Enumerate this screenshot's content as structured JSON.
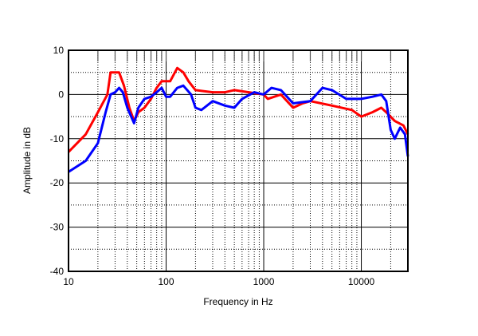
{
  "chart_data": {
    "type": "line",
    "title": "",
    "xlabel": "Frequency in Hz",
    "ylabel": "Amplitude in dB",
    "xscale": "log",
    "xlim": [
      10,
      30000
    ],
    "ylim": [
      -40,
      10
    ],
    "xticks": [
      10,
      100,
      1000,
      10000
    ],
    "xtick_labels": [
      "10",
      "100",
      "1000",
      "10000"
    ],
    "yticks": [
      10,
      0,
      -10,
      -20,
      -30,
      -40
    ],
    "ytick_labels": [
      "10",
      "0",
      "-10",
      "-20",
      "-30",
      "-40"
    ],
    "grid": true,
    "series": [
      {
        "name": "red",
        "color": "#ff0000",
        "x": [
          10,
          15,
          20,
          25,
          27,
          33,
          37,
          42,
          47,
          52,
          60,
          70,
          80,
          90,
          110,
          130,
          150,
          170,
          200,
          300,
          400,
          500,
          700,
          1000,
          1100,
          1500,
          2000,
          2500,
          3000,
          5000,
          8000,
          10000,
          13000,
          16000,
          18000,
          22000,
          27000,
          30000
        ],
        "y": [
          -13,
          -9,
          -4,
          0,
          5,
          5,
          2,
          -3,
          -6,
          -4,
          -3,
          -1,
          1.5,
          3,
          3,
          6,
          5,
          3,
          1,
          0.5,
          0.5,
          1,
          0.5,
          0,
          -1,
          0,
          -3,
          -2,
          -1.5,
          -2.5,
          -3.5,
          -5,
          -4,
          -3,
          -4,
          -6,
          -7,
          -9
        ]
      },
      {
        "name": "blue",
        "color": "#0000ff",
        "x": [
          10,
          15,
          20,
          24,
          27,
          30,
          33,
          36,
          40,
          47,
          52,
          60,
          70,
          80,
          90,
          100,
          110,
          130,
          150,
          180,
          200,
          230,
          300,
          400,
          500,
          600,
          800,
          1000,
          1200,
          1500,
          2000,
          3000,
          4000,
          5000,
          7000,
          10000,
          13000,
          16000,
          18000,
          20000,
          22000,
          25000,
          28000,
          30000
        ],
        "y": [
          -17.5,
          -15,
          -11,
          -4,
          0,
          0.5,
          1.5,
          0.5,
          -3,
          -6.5,
          -3,
          -1,
          -0.5,
          0.5,
          1.5,
          -0.5,
          -0.5,
          1.5,
          2,
          0,
          -3,
          -3.5,
          -1.5,
          -2.5,
          -3,
          -1,
          0.5,
          0,
          1.5,
          1,
          -2,
          -1.5,
          1.5,
          1,
          -1,
          -1,
          -0.5,
          0,
          -1.5,
          -8,
          -10,
          -7.5,
          -9,
          -14
        ]
      }
    ]
  }
}
